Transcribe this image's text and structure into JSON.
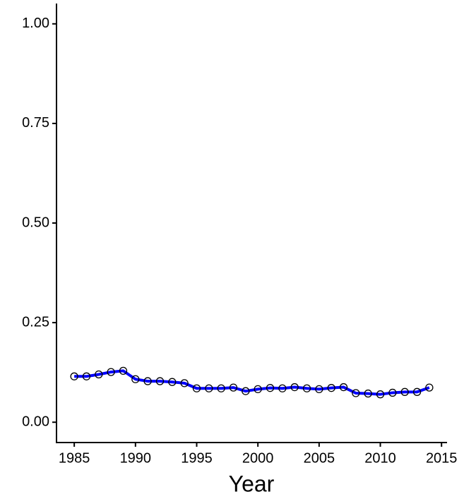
{
  "chart_data": {
    "type": "line",
    "x_label": "Year",
    "x": [
      1985,
      1986,
      1987,
      1988,
      1989,
      1990,
      1991,
      1992,
      1993,
      1994,
      1995,
      1996,
      1997,
      1998,
      1999,
      2000,
      2001,
      2002,
      2003,
      2004,
      2005,
      2006,
      2007,
      2008,
      2009,
      2010,
      2011,
      2012,
      2013,
      2014
    ],
    "series": [
      {
        "color": "#0000ff",
        "values": [
          0.115,
          0.115,
          0.12,
          0.126,
          0.129,
          0.108,
          0.103,
          0.103,
          0.101,
          0.098,
          0.085,
          0.085,
          0.085,
          0.087,
          0.078,
          0.083,
          0.086,
          0.085,
          0.088,
          0.085,
          0.083,
          0.086,
          0.088,
          0.073,
          0.072,
          0.07,
          0.074,
          0.076,
          0.076,
          0.087
        ]
      }
    ],
    "xlim": [
      1983.55,
      2015.45
    ],
    "xticks": [
      1985,
      1990,
      1995,
      2000,
      2005,
      2010,
      2015
    ],
    "ylim": [
      -0.051,
      1.051
    ],
    "yticks": [
      {
        "value": 0,
        "label": "0.00"
      },
      {
        "value": 0.25,
        "label": "0.25"
      },
      {
        "value": 0.5,
        "label": "0.50"
      },
      {
        "value": 0.75,
        "label": "0.75"
      },
      {
        "value": 1,
        "label": "1.00"
      }
    ]
  }
}
